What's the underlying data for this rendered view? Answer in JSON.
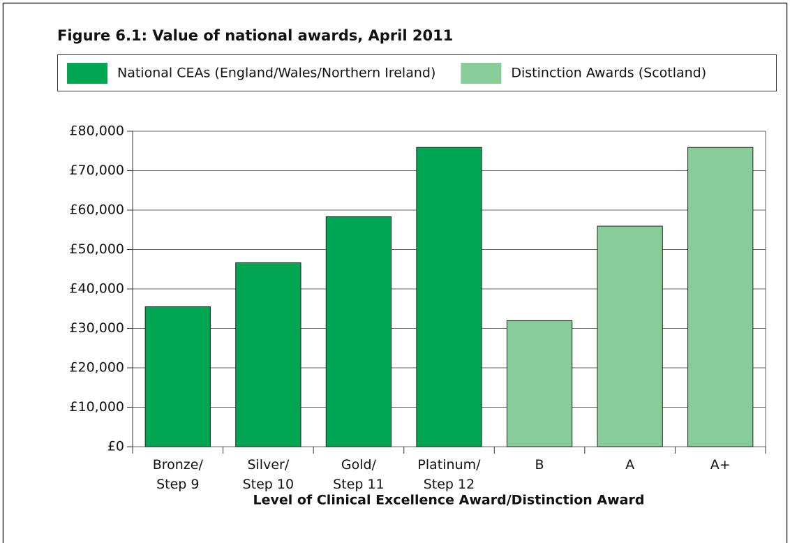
{
  "chart_data": {
    "type": "bar",
    "title": "Figure 6.1: Value of national awards, April 2011",
    "x_label": "Level of Clinical Excellence Award/Distinction Award",
    "categories": [
      "Bronze/\nStep 9",
      "Silver/\nStep 10",
      "Gold/\nStep 11",
      "Platinum/\nStep 12",
      "B",
      "A",
      "A+"
    ],
    "series": [
      {
        "name": "National CEAs (England/Wales/Northern Ireland)",
        "color": "#00a651",
        "values": [
          35484,
          46644,
          58305,
          75889,
          null,
          null,
          null
        ]
      },
      {
        "name": "Distinction Awards (Scotland)",
        "color": "#88cc99",
        "values": [
          null,
          null,
          null,
          null,
          31959,
          55924,
          75889
        ]
      }
    ],
    "ylim": [
      0,
      80000
    ],
    "yticks": [
      {
        "value": 0,
        "label": "£0"
      },
      {
        "value": 10000,
        "label": "£10,000"
      },
      {
        "value": 20000,
        "label": "£20,000"
      },
      {
        "value": 30000,
        "label": "£30,000"
      },
      {
        "value": 40000,
        "label": "£40,000"
      },
      {
        "value": 50000,
        "label": "£50,000"
      },
      {
        "value": 60000,
        "label": "£60,000"
      },
      {
        "value": 70000,
        "label": "£70,000"
      },
      {
        "value": 80000,
        "label": "£80,000"
      }
    ],
    "grid": true,
    "legend": "top"
  }
}
